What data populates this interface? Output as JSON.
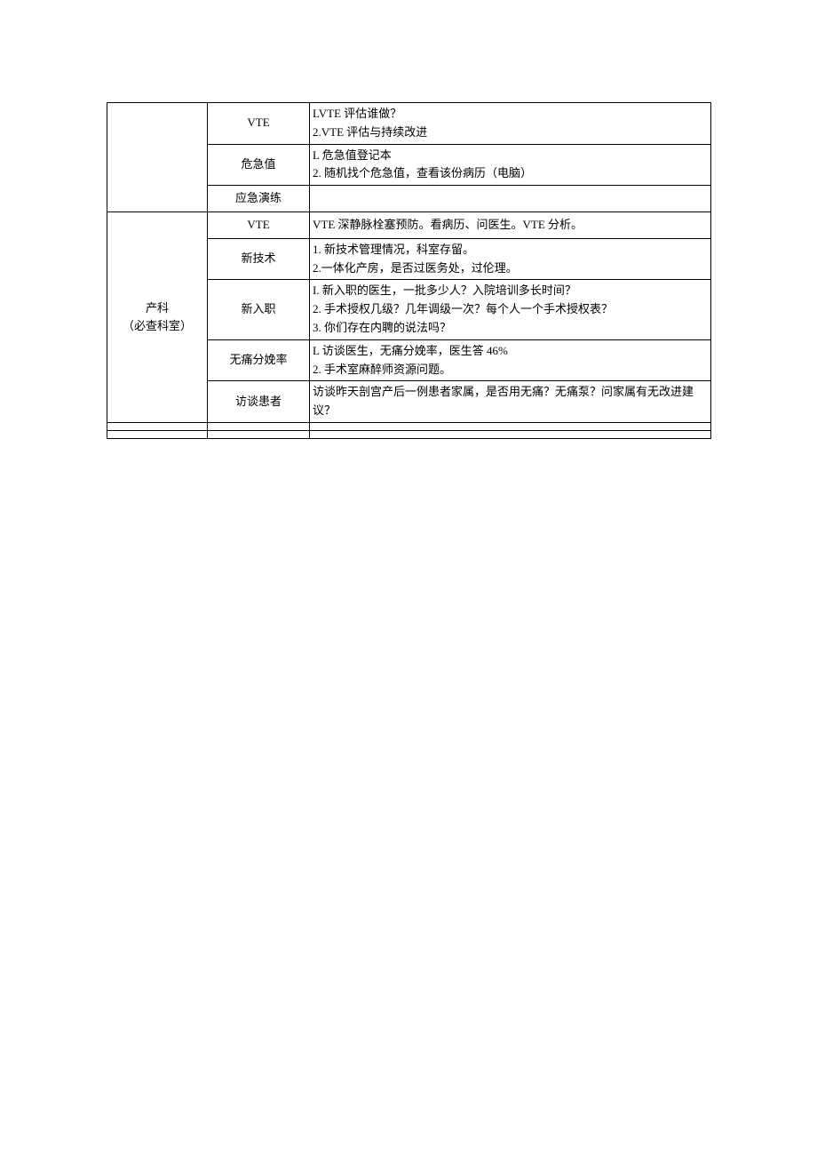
{
  "table": {
    "section1": {
      "label": "",
      "rows": [
        {
          "topic": "VTE",
          "content": "LVTE 评估谁做？\n2.VTE 评估与持续改进"
        },
        {
          "topic": "危急值",
          "content": "L 危急值登记本\n2. 随机找个危急值，查看该份病历（电脑）"
        },
        {
          "topic": "应急演练",
          "content": ""
        }
      ]
    },
    "section2": {
      "label_line1": "产科",
      "label_line2": "（必查科室）",
      "rows": [
        {
          "topic": "VTE",
          "content": "VTE 深静脉栓塞预防。看病历、问医生。VTE 分析。"
        },
        {
          "topic": "新技术",
          "content": "1. 新技术管理情况，科室存留。\n2.一体化产房，是否过医务处，过伦理。"
        },
        {
          "topic": "新入职",
          "content": "I. 新入职的医生，一批多少人？入院培训多长时间？\n2. 手术授权几级？几年调级一次？每个人一个手术授权表？\n3. 你们存在内聘的说法吗？\n "
        },
        {
          "topic": "无痛分娩率",
          "content": "L 访谈医生，无痛分娩率，医生答 46%\n2. 手术室麻醉师资源问题。"
        },
        {
          "topic": "访谈患者",
          "content": "访谈昨天剖宫产后一例患者家属，是否用无痛？无痛泵？问家属有无改进建议？"
        }
      ]
    },
    "emptyRows": [
      {
        "col1": "",
        "col2": "",
        "col3": ""
      },
      {
        "col1": "",
        "col2": "",
        "col3": ""
      }
    ]
  }
}
